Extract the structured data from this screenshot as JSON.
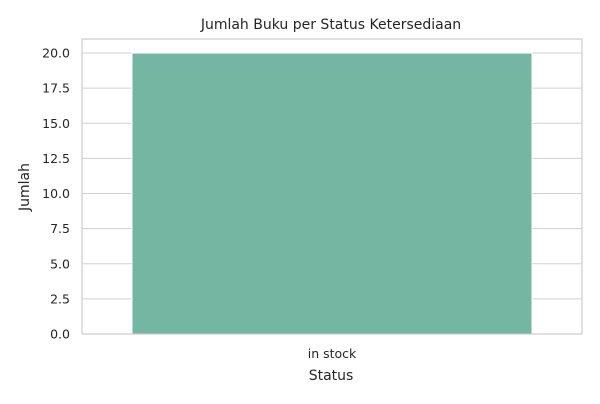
{
  "chart_data": {
    "type": "bar",
    "title": "Jumlah Buku per Status Ketersediaan",
    "xlabel": "Status",
    "ylabel": "Jumlah",
    "categories": [
      "in stock"
    ],
    "values": [
      20
    ],
    "ylim": [
      0,
      21
    ],
    "yticks": [
      "0.0",
      "2.5",
      "5.0",
      "7.5",
      "10.0",
      "12.5",
      "15.0",
      "17.5",
      "20.0"
    ],
    "grid": "y",
    "legend": "none",
    "bar_color": "#73b6a2",
    "grid_color": "#d0d0d0",
    "spine_color": "#cccccc"
  }
}
